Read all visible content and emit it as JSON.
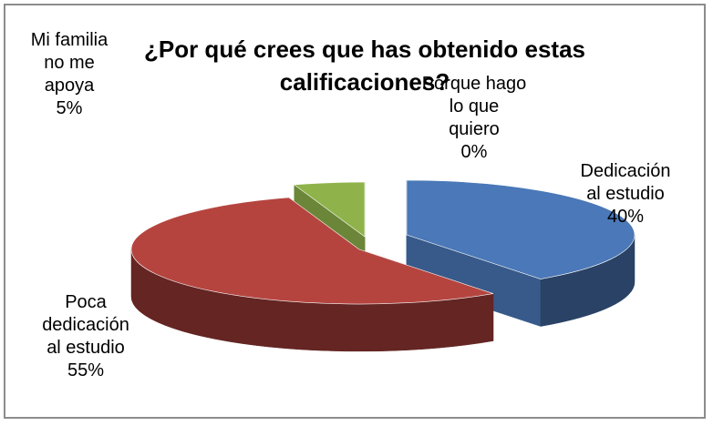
{
  "chart_data": {
    "type": "pie",
    "title": "¿Por qué crees que has obtenido estas calificaciones?",
    "title_lines": [
      "¿Por qué crees que has obtenido estas",
      "calificaciones?"
    ],
    "slices": [
      {
        "name": "Dedicación al estudio",
        "value": 40,
        "label": "40%",
        "color": "#4a78b8",
        "label_lines": [
          "Dedicación",
          "al estudio",
          "40%"
        ]
      },
      {
        "name": "Poca dedicación al estudio",
        "value": 55,
        "label": "55%",
        "color": "#b5443f",
        "label_lines": [
          "Poca",
          "dedicación",
          "al estudio",
          "55%"
        ]
      },
      {
        "name": "Mi familia no me apoya",
        "value": 5,
        "label": "5%",
        "color": "#8fb34a",
        "label_lines": [
          "Mi familia",
          "no me",
          "apoya",
          "5%"
        ]
      },
      {
        "name": "Porque hago lo que quiero",
        "value": 0,
        "label": "0%",
        "color": "#7a5fa0",
        "label_lines": [
          "Porque hago",
          "lo que",
          "quiero",
          "0%"
        ]
      }
    ],
    "style": "3d-exploded"
  }
}
